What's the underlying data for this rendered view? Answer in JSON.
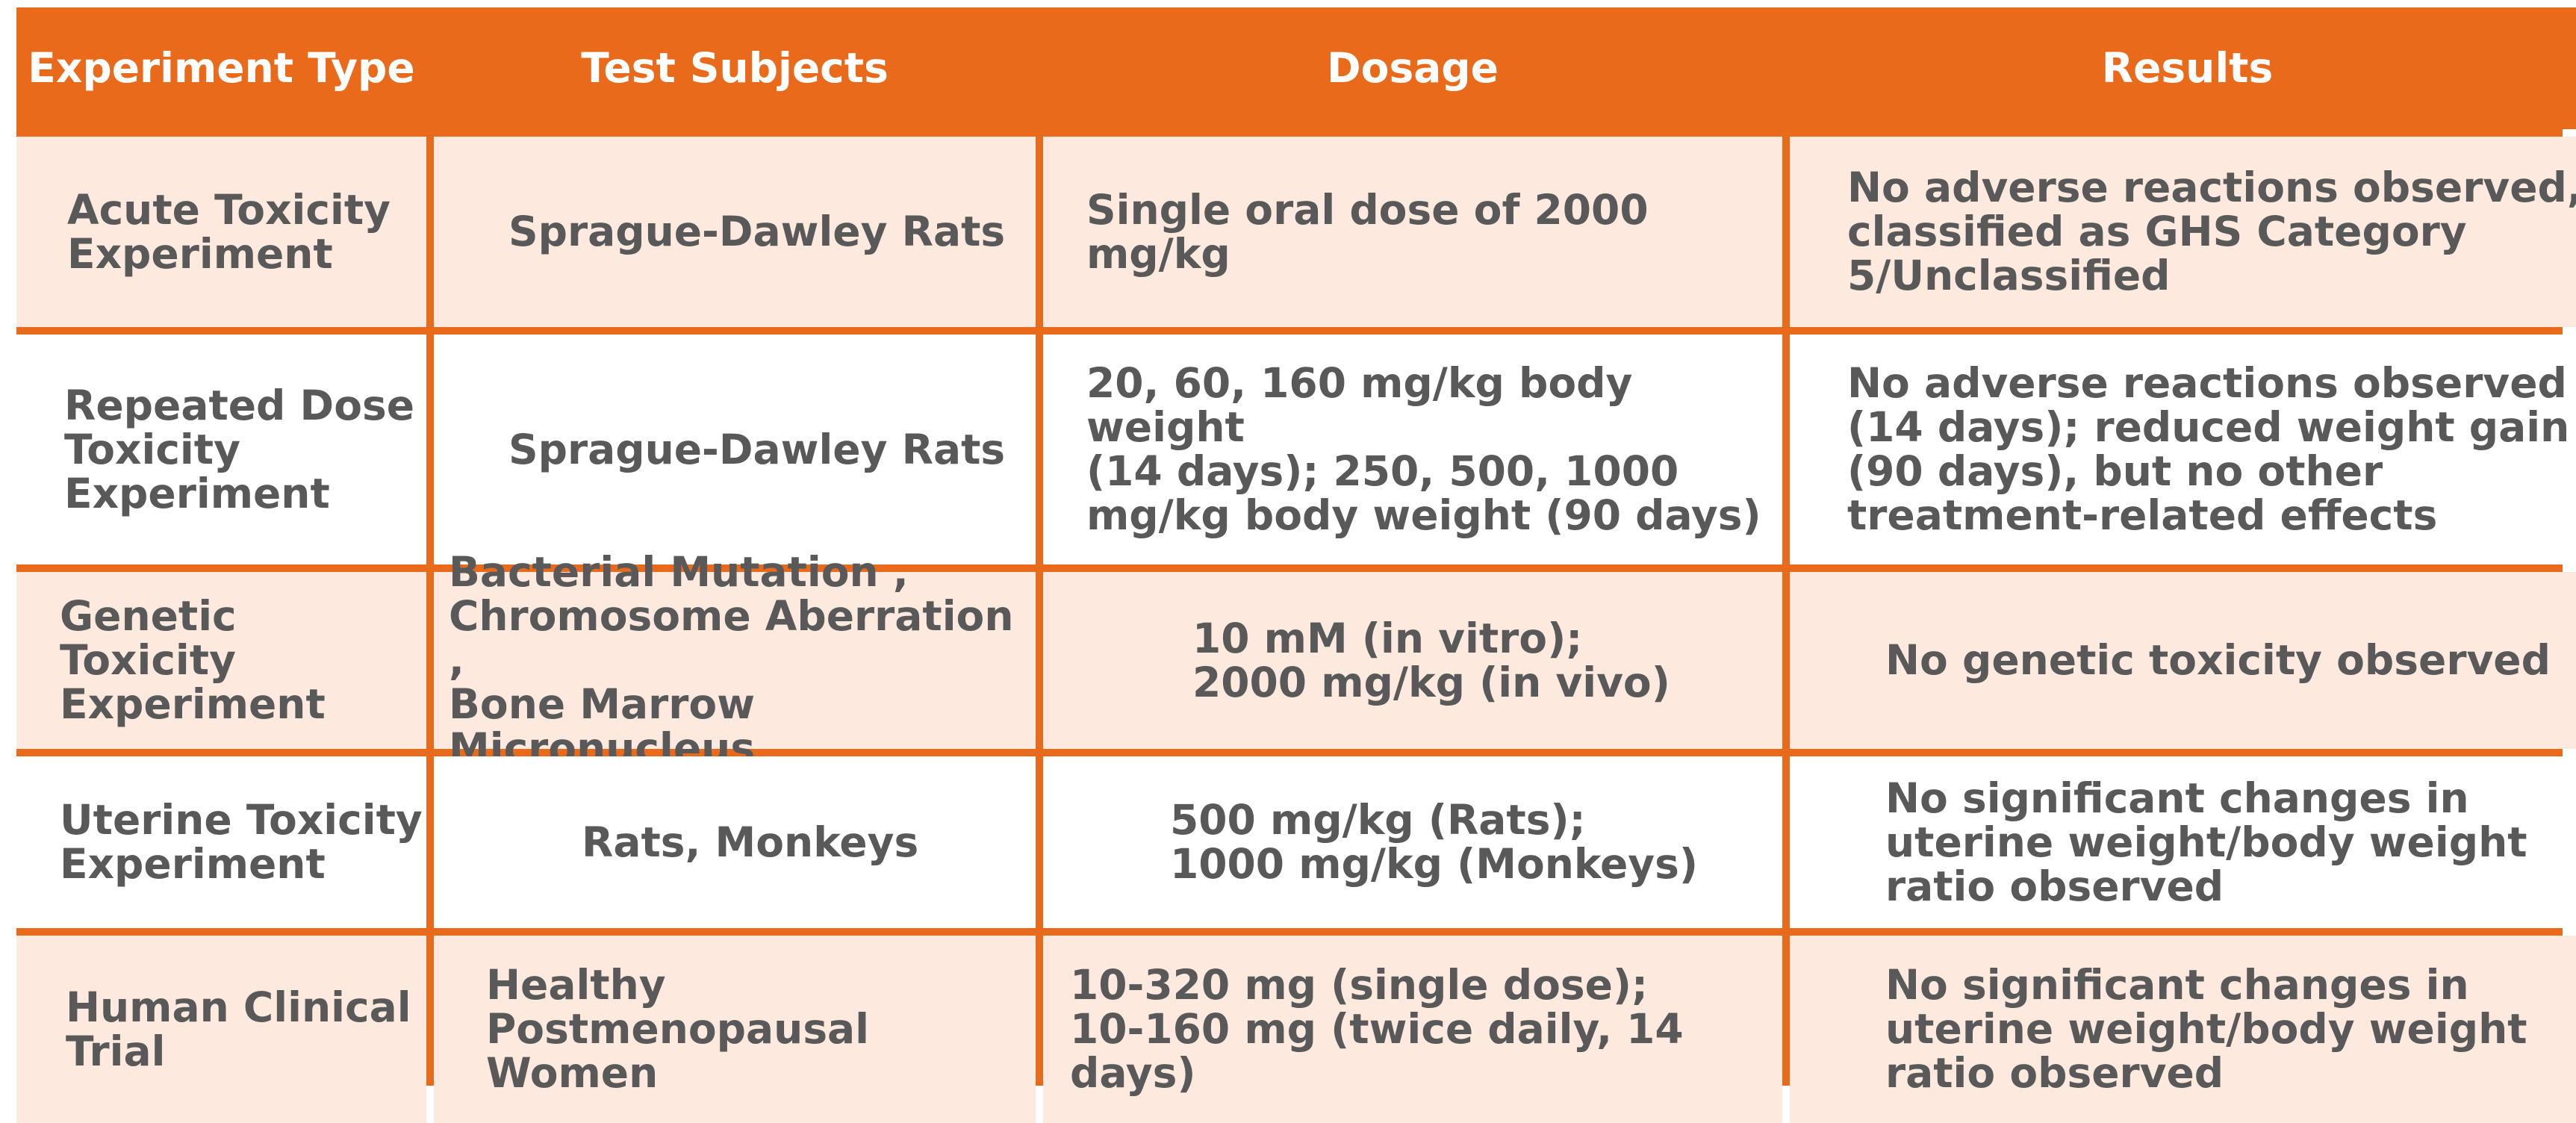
{
  "table": {
    "headers": [
      "Experiment Type",
      "Test Subjects",
      "Dosage",
      "Results"
    ],
    "rows": [
      {
        "experiment": "Acute Toxicity\nExperiment",
        "subjects": "Sprague-Dawley Rats",
        "dosage": "Single oral dose of 2000 mg/kg",
        "results": "No adverse reactions observed,\nclassified as GHS Category\n5/Unclassified"
      },
      {
        "experiment": "Repeated Dose\nToxicity\nExperiment",
        "subjects": "Sprague-Dawley Rats",
        "dosage": "20, 60, 160 mg/kg body weight\n(14 days); 250, 500, 1000\nmg/kg body weight (90 days)",
        "results": "No adverse reactions observed\n(14 days); reduced weight gain\n(90 days), but no other\ntreatment-related effects"
      },
      {
        "experiment": "Genetic Toxicity\nExperiment",
        "subjects": "Bacterial Mutation ,\nChromosome Aberration ,\nBone Marrow Micronucleus",
        "dosage": "10 mM (in vitro);\n2000 mg/kg (in vivo)",
        "results": "No genetic toxicity observed"
      },
      {
        "experiment": "Uterine Toxicity\nExperiment",
        "subjects": "Rats, Monkeys",
        "dosage": "500 mg/kg (Rats);\n1000 mg/kg (Monkeys)",
        "results": "No significant changes in\nuterine weight/body weight\nratio observed"
      },
      {
        "experiment": "Human Clinical\nTrial",
        "subjects": "Healthy Postmenopausal\nWomen",
        "dosage": "10-320 mg (single dose);\n10-160 mg (twice daily, 14 days)",
        "results": "No significant changes in\nuterine weight/body weight\nratio observed"
      }
    ]
  },
  "colors": {
    "header_bg": "#ea6a1c",
    "header_text": "#ffffff",
    "row_peach": "#fde9de",
    "row_white": "#ffffff",
    "body_text": "#595959"
  }
}
